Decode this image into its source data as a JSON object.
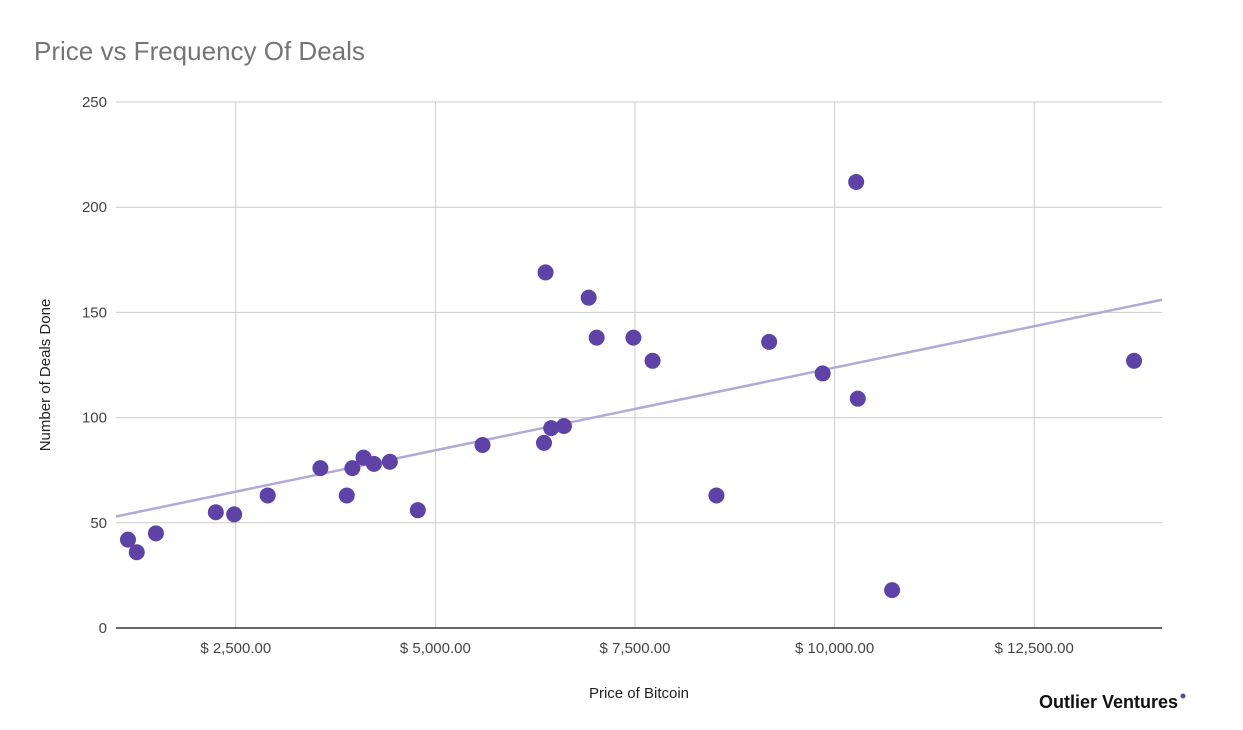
{
  "chart_data": {
    "type": "scatter",
    "title": "Price vs Frequency Of Deals",
    "xlabel": "Price of Bitcoin",
    "ylabel": "Number of Deals Done",
    "xlim": [
      1000,
      14100
    ],
    "ylim": [
      0,
      250
    ],
    "x_ticks": [
      2500,
      5000,
      7500,
      10000,
      12500
    ],
    "x_tick_labels": [
      "$ 2,500.00",
      "$ 5,000.00",
      "$ 7,500.00",
      "$ 10,000.00",
      "$ 12,500.00"
    ],
    "y_ticks": [
      0,
      50,
      100,
      150,
      200,
      250
    ],
    "y_tick_labels": [
      "0",
      "50",
      "100",
      "150",
      "200",
      "250"
    ],
    "grid": true,
    "series": [
      {
        "color": "#5e42a6",
        "points": [
          {
            "x": 1150,
            "y": 42
          },
          {
            "x": 1260,
            "y": 36
          },
          {
            "x": 1500,
            "y": 45
          },
          {
            "x": 2250,
            "y": 55
          },
          {
            "x": 2480,
            "y": 54
          },
          {
            "x": 2900,
            "y": 63
          },
          {
            "x": 3560,
            "y": 76
          },
          {
            "x": 3890,
            "y": 63
          },
          {
            "x": 3960,
            "y": 76
          },
          {
            "x": 4100,
            "y": 81
          },
          {
            "x": 4230,
            "y": 78
          },
          {
            "x": 4430,
            "y": 79
          },
          {
            "x": 4780,
            "y": 56
          },
          {
            "x": 5590,
            "y": 87
          },
          {
            "x": 6360,
            "y": 88
          },
          {
            "x": 6380,
            "y": 169
          },
          {
            "x": 6450,
            "y": 95
          },
          {
            "x": 6610,
            "y": 96
          },
          {
            "x": 6920,
            "y": 157
          },
          {
            "x": 7020,
            "y": 138
          },
          {
            "x": 7480,
            "y": 138
          },
          {
            "x": 7720,
            "y": 127
          },
          {
            "x": 8520,
            "y": 63
          },
          {
            "x": 9180,
            "y": 136
          },
          {
            "x": 9850,
            "y": 121
          },
          {
            "x": 10270,
            "y": 212
          },
          {
            "x": 10290,
            "y": 109
          },
          {
            "x": 10720,
            "y": 18
          },
          {
            "x": 13750,
            "y": 127
          }
        ]
      }
    ],
    "trendline": {
      "color": "#b3a9d6",
      "points": [
        {
          "x": 1000,
          "y": 53
        },
        {
          "x": 14100,
          "y": 156
        }
      ]
    }
  },
  "branding": {
    "text": "Outlier Ventures",
    "dot_color": "#5e42a6"
  }
}
